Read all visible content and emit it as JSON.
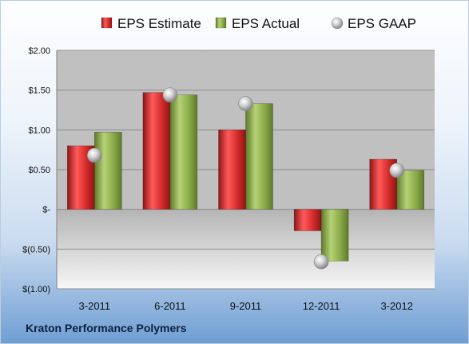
{
  "chart_data": {
    "type": "bar",
    "categories": [
      "3-2011",
      "6-2011",
      "9-2011",
      "12-2011",
      "3-2012"
    ],
    "series": [
      {
        "name": "EPS Estimate",
        "kind": "bar",
        "color": "#d42a2a",
        "values": [
          0.8,
          1.47,
          1.0,
          -0.27,
          0.63
        ]
      },
      {
        "name": "EPS Actual",
        "kind": "bar",
        "color": "#8aab4a",
        "values": [
          0.97,
          1.44,
          1.33,
          -0.65,
          0.49
        ]
      },
      {
        "name": "EPS GAAP",
        "kind": "marker",
        "color": "#b7b7b7",
        "values": [
          0.68,
          1.44,
          1.33,
          -0.66,
          0.49
        ]
      }
    ],
    "ylim": [
      -1.0,
      2.0
    ],
    "yticks": [
      {
        "value": 2.0,
        "label": "$2.00"
      },
      {
        "value": 1.5,
        "label": "$1.50"
      },
      {
        "value": 1.0,
        "label": "$1.00"
      },
      {
        "value": 0.5,
        "label": "$0.50"
      },
      {
        "value": 0.0,
        "label": "$-"
      },
      {
        "value": -0.5,
        "label": "$(0.50)"
      },
      {
        "value": -1.0,
        "label": "$(1.00)"
      }
    ],
    "grid": true,
    "legend_position": "top",
    "colors": {
      "plot_positive": "#c0c0c0",
      "plot_negative_top": "#b4b4b4",
      "plot_negative_bottom": "#f7f7f7",
      "gridline": "#8c8c8c"
    }
  },
  "footer": {
    "label": "Kraton Performance Polymers"
  }
}
